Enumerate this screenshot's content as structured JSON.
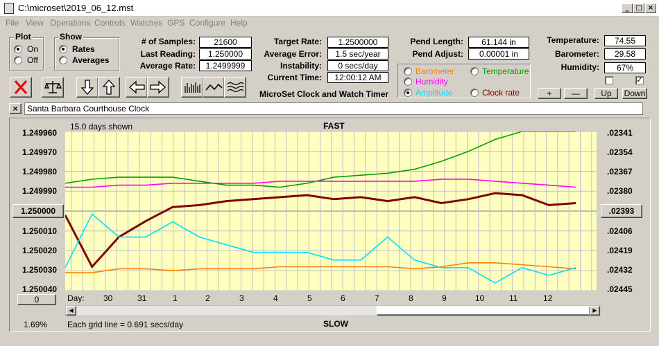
{
  "window": {
    "title": "C:\\microset\\2019_06_12.mst"
  },
  "menu": [
    "File",
    "View",
    "Operations",
    "Controls",
    "Watches",
    "GPS",
    "Configure",
    "Help"
  ],
  "plot_group": {
    "label": "Plot",
    "on": "On",
    "off": "Off",
    "selected": "On"
  },
  "show_group": {
    "label": "Show",
    "rates": "Rates",
    "averages": "Averages",
    "selected": "Rates"
  },
  "stats": {
    "samples_label": "# of Samples:",
    "samples": "21600",
    "last_reading_label": "Last Reading:",
    "last_reading": "1.250000",
    "average_rate_label": "Average Rate:",
    "average_rate": "1.2499999",
    "target_rate_label": "Target Rate:",
    "target_rate": "1.2500000",
    "average_error_label": "Average Error:",
    "average_error": "1.5 sec/year",
    "instability_label": "Instability:",
    "instability": "0 secs/day",
    "current_time_label": "Current Time:",
    "current_time": "12:00:12 AM",
    "pend_length_label": "Pend Length:",
    "pend_length": "61.144 in",
    "pend_adjust_label": "Pend Adjust:",
    "pend_adjust": "0.00001 in",
    "temperature_label": "Temperature:",
    "temperature": "74.55",
    "barometer_label": "Barometer:",
    "barometer": "29.58",
    "humidity_label": "Humidity:",
    "humidity": "67%"
  },
  "app_title": "MicroSet Clock and Watch Timer",
  "series_options": {
    "barometer": "Barometer",
    "humidity": "Humidity",
    "amplitude": "Amplitude",
    "temperature": "Temperature",
    "clock_rate": "Clock rate",
    "selected": "Amplitude"
  },
  "colors": {
    "barometer": "#ff8000",
    "humidity": "#ff00ff",
    "amplitude": "#00e0ff",
    "temperature": "#00a000",
    "clock_rate": "#800000",
    "plot_bg": "#ffffc0"
  },
  "adjust_buttons": {
    "plus": "+",
    "minus": "—",
    "up": "Up",
    "down": "Down"
  },
  "checkbox_right": "✓",
  "clock_name": "Santa Barbara Courthouse Clock",
  "close_label": "×",
  "chart": {
    "days_shown": "15.0 days shown",
    "top_label": "FAST",
    "bottom_label": "SLOW",
    "grid_note": "Each grid line = 0.691 secs/day",
    "percent": "1.69%",
    "day_label": "Day:",
    "zero_button": "0",
    "center_left": "1.250000",
    "center_right": ".02393",
    "left_ticks": [
      "1.249960",
      "1.249970",
      "1.249980",
      "1.249990",
      "1.250010",
      "1.250020",
      "1.250030",
      "1.250040"
    ],
    "right_ticks": [
      ".02341",
      ".02354",
      ".02367",
      ".02380",
      ".02406",
      ".02419",
      ".02432",
      ".02445"
    ],
    "days": [
      "30",
      "31",
      "1",
      "2",
      "3",
      "4",
      "5",
      "6",
      "7",
      "8",
      "9",
      "10",
      "11",
      "12"
    ]
  },
  "chart_data": {
    "type": "line",
    "ylim_rate": [
      1.24996,
      1.25004
    ],
    "ylim_amplitude": [
      0.02341,
      0.02445
    ],
    "x_label": "Day",
    "series": [
      {
        "name": "Clock rate",
        "y": [
          1.250002,
          1.250028,
          1.250013,
          1.250005,
          1.249998,
          1.249997,
          1.249995,
          1.249994,
          1.249993,
          1.249992,
          1.249994,
          1.249993,
          1.249995,
          1.249993,
          1.249996,
          1.249994,
          1.249991,
          1.249992,
          1.249997,
          1.249996
        ]
      },
      {
        "name": "Temperature",
        "y": [
          1.249986,
          1.249984,
          1.249983,
          1.249983,
          1.249983,
          1.249985,
          1.249987,
          1.249987,
          1.249988,
          1.249986,
          1.249983,
          1.249982,
          1.249981,
          1.249979,
          1.249975,
          1.24997,
          1.249964,
          1.24996,
          1.24996,
          1.24996
        ]
      },
      {
        "name": "Humidity",
        "y": [
          1.249988,
          1.249988,
          1.249987,
          1.249987,
          1.249986,
          1.249986,
          1.249986,
          1.249986,
          1.249985,
          1.249985,
          1.249985,
          1.249985,
          1.249985,
          1.249985,
          1.249984,
          1.249984,
          1.249985,
          1.249986,
          1.249987,
          1.249988
        ]
      },
      {
        "name": "Barometer",
        "y": [
          1.250031,
          1.250031,
          1.250029,
          1.250029,
          1.25003,
          1.250029,
          1.250029,
          1.250029,
          1.250028,
          1.250028,
          1.250028,
          1.250028,
          1.250028,
          1.250029,
          1.250028,
          1.250026,
          1.250026,
          1.250027,
          1.250028,
          1.250029
        ]
      },
      {
        "name": "Amplitude",
        "y": [
          0.0243,
          0.02395,
          0.0241,
          0.0241,
          0.024,
          0.0241,
          0.02415,
          0.0242,
          0.0242,
          0.0242,
          0.02425,
          0.02425,
          0.0241,
          0.02425,
          0.0243,
          0.0243,
          0.0244,
          0.0243,
          0.02435,
          0.0243
        ]
      }
    ]
  }
}
